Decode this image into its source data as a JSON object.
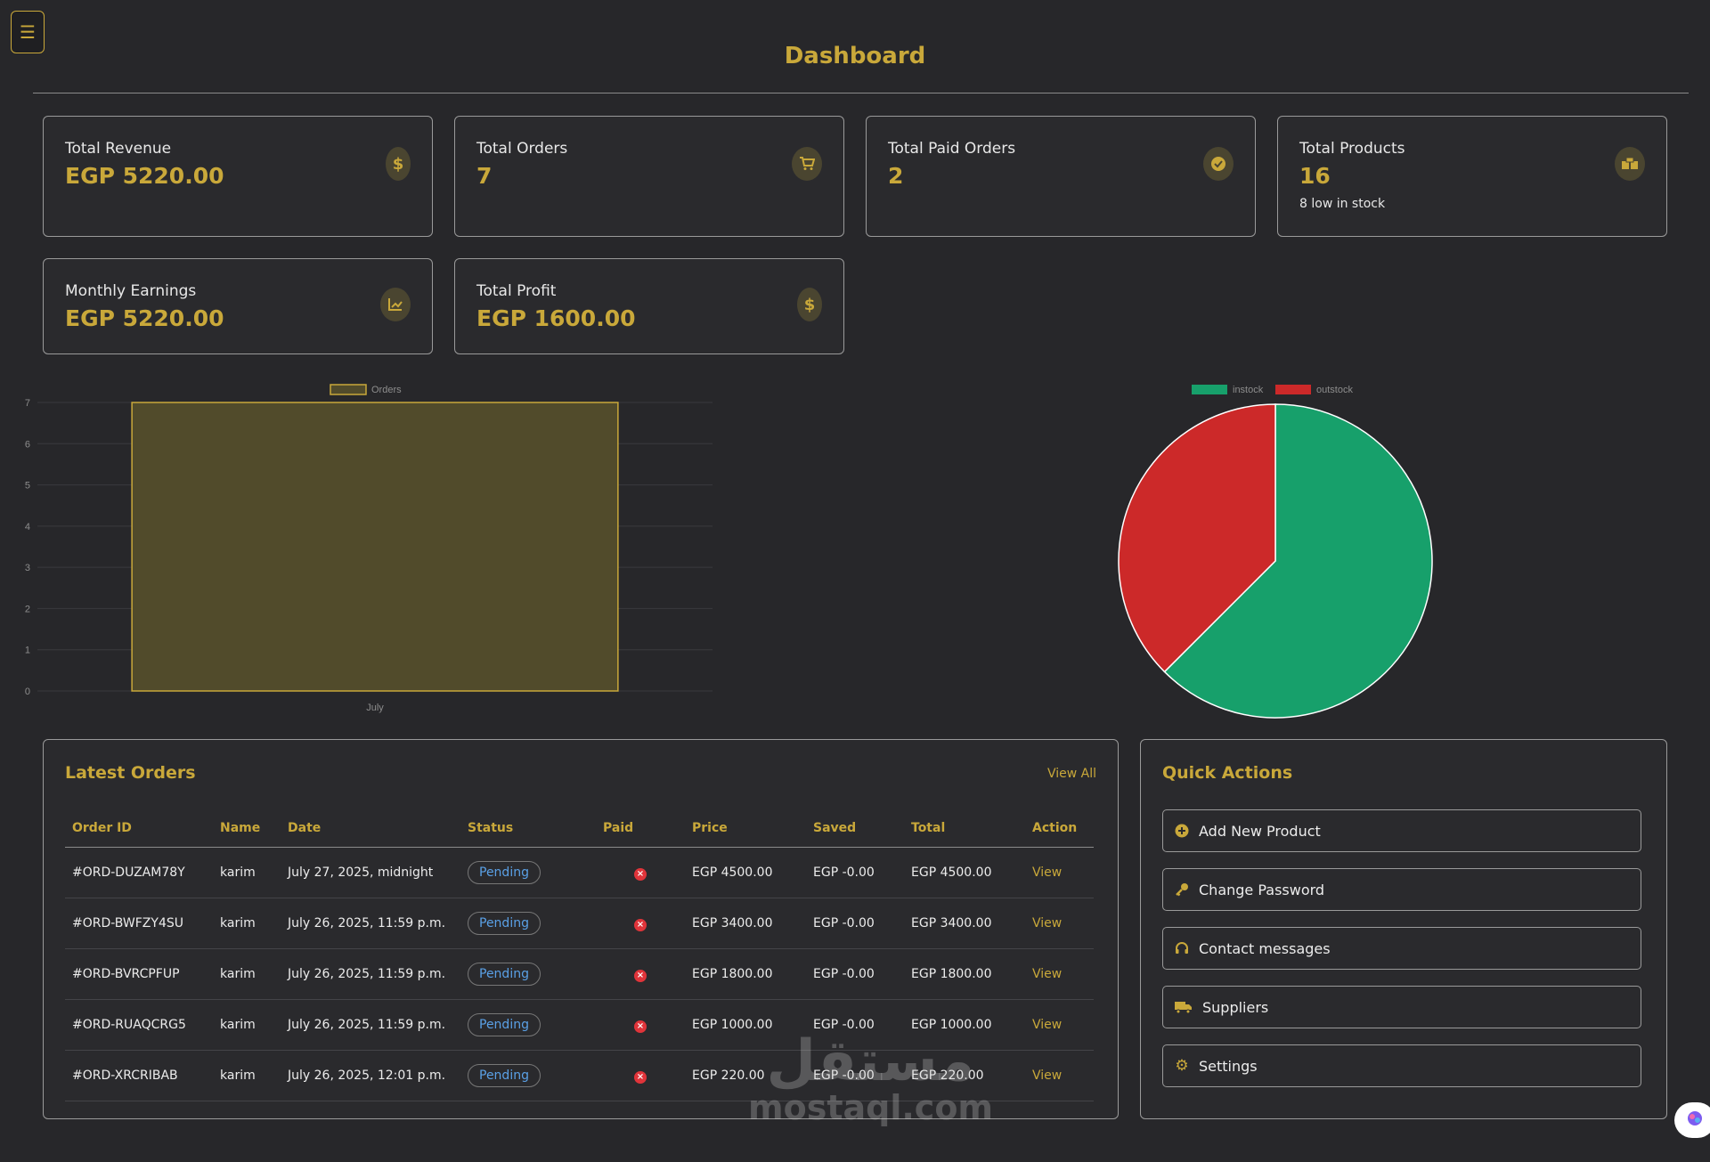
{
  "header": {
    "menu_icon": "hamburger-icon",
    "title": "Dashboard"
  },
  "stats": [
    {
      "label": "Total Revenue",
      "value": "EGP 5220.00",
      "icon": "dollar-icon"
    },
    {
      "label": "Total Orders",
      "value": "7",
      "icon": "cart-icon"
    },
    {
      "label": "Total Paid Orders",
      "value": "2",
      "icon": "check-circle-icon"
    },
    {
      "label": "Total Products",
      "value": "16",
      "sub": "8 low in stock",
      "icon": "boxes-icon"
    },
    {
      "label": "Monthly Earnings",
      "value": "EGP 5220.00",
      "icon": "chart-line-icon"
    },
    {
      "label": "Total Profit",
      "value": "EGP 1600.00",
      "icon": "dollar-icon"
    }
  ],
  "chart_data": [
    {
      "type": "bar",
      "categories": [
        "July"
      ],
      "series": [
        {
          "name": "Orders",
          "values": [
            7
          ]
        }
      ],
      "ylim": [
        0,
        7
      ],
      "yticks": [
        "0",
        "1",
        "2",
        "3",
        "4",
        "5",
        "6",
        "7"
      ],
      "legend": "top",
      "grid": true,
      "colors": {
        "fill": "#514b2b",
        "stroke": "#c9a83a"
      }
    },
    {
      "type": "pie",
      "labels": [
        "instock",
        "outstock"
      ],
      "values": [
        10,
        6
      ],
      "legend": "top",
      "colors": [
        "#17a06b",
        "#cc2929"
      ]
    }
  ],
  "orders": {
    "title": "Latest Orders",
    "view_all": "View All",
    "columns": [
      "Order ID",
      "Name",
      "Date",
      "Status",
      "Paid",
      "Price",
      "Saved",
      "Total",
      "Action"
    ],
    "rows": [
      {
        "id": "#ORD-DUZAM78Y",
        "name": "karim",
        "date": "July 27, 2025, midnight",
        "status": "Pending",
        "price": "EGP 4500.00",
        "saved": "EGP -0.00",
        "total": "EGP 4500.00",
        "action": "View"
      },
      {
        "id": "#ORD-BWFZY4SU",
        "name": "karim",
        "date": "July 26, 2025, 11:59 p.m.",
        "status": "Pending",
        "price": "EGP 3400.00",
        "saved": "EGP -0.00",
        "total": "EGP 3400.00",
        "action": "View"
      },
      {
        "id": "#ORD-BVRCPFUP",
        "name": "karim",
        "date": "July 26, 2025, 11:59 p.m.",
        "status": "Pending",
        "price": "EGP 1800.00",
        "saved": "EGP -0.00",
        "total": "EGP 1800.00",
        "action": "View"
      },
      {
        "id": "#ORD-RUAQCRG5",
        "name": "karim",
        "date": "July 26, 2025, 11:59 p.m.",
        "status": "Pending",
        "price": "EGP 1000.00",
        "saved": "EGP -0.00",
        "total": "EGP 1000.00",
        "action": "View"
      },
      {
        "id": "#ORD-XRCRIBAB",
        "name": "karim",
        "date": "July 26, 2025, 12:01 p.m.",
        "status": "Pending",
        "price": "EGP 220.00",
        "saved": "EGP -0.00",
        "total": "EGP 220.00",
        "action": "View"
      }
    ]
  },
  "quick_actions": {
    "title": "Quick Actions",
    "items": [
      {
        "label": "Add New Product",
        "icon": "plus-circle-icon"
      },
      {
        "label": "Change Password",
        "icon": "key-icon"
      },
      {
        "label": "Contact messages",
        "icon": "headset-icon"
      },
      {
        "label": "Suppliers",
        "icon": "truck-icon"
      },
      {
        "label": "Settings",
        "icon": "gear-icon"
      }
    ]
  },
  "watermark": {
    "arabic": "مستقل",
    "latin": "mostaql.com"
  },
  "colors": {
    "accent": "#c9a83a",
    "background": "#27272a",
    "pending": "#5aa0e6",
    "unpaid": "#e0343a"
  }
}
